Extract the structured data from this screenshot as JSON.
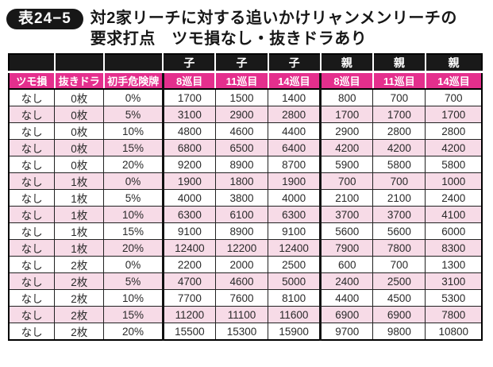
{
  "title": {
    "badge": "表24−5",
    "line1": "対2家リーチに対する追いかけリャンメンリーチの",
    "line2": "要求打点　ツモ損なし・抜きドラあり"
  },
  "colors": {
    "header_black": "#191919",
    "header_magenta": "#e42f8d",
    "zebra_pink": "#f7dbe7",
    "grid_line": "#222222",
    "text": "#2a2a2a"
  },
  "table": {
    "group_headers": [
      "",
      "",
      "",
      "子",
      "子",
      "子",
      "親",
      "親",
      "親"
    ],
    "column_headers": [
      "ツモ損",
      "抜きドラ",
      "初手危険牌",
      "8巡目",
      "11巡目",
      "14巡目",
      "8巡目",
      "11巡目",
      "14巡目"
    ],
    "thick_cols": [
      3,
      6
    ],
    "col_widths_percent": [
      9.7,
      10.4,
      12.5,
      11.1,
      11.1,
      11.1,
      11.1,
      11.1,
      11.9
    ],
    "rows": [
      [
        "なし",
        "0枚",
        "0%",
        "1700",
        "1500",
        "1400",
        "800",
        "700",
        "700"
      ],
      [
        "なし",
        "0枚",
        "5%",
        "3100",
        "2900",
        "2800",
        "1700",
        "1700",
        "1700"
      ],
      [
        "なし",
        "0枚",
        "10%",
        "4800",
        "4600",
        "4400",
        "2900",
        "2800",
        "2800"
      ],
      [
        "なし",
        "0枚",
        "15%",
        "6800",
        "6500",
        "6400",
        "4200",
        "4200",
        "4200"
      ],
      [
        "なし",
        "0枚",
        "20%",
        "9200",
        "8900",
        "8700",
        "5900",
        "5800",
        "5800"
      ],
      [
        "なし",
        "1枚",
        "0%",
        "1900",
        "1800",
        "1900",
        "700",
        "700",
        "1000"
      ],
      [
        "なし",
        "1枚",
        "5%",
        "4000",
        "3800",
        "4000",
        "2100",
        "2100",
        "2400"
      ],
      [
        "なし",
        "1枚",
        "10%",
        "6300",
        "6100",
        "6300",
        "3700",
        "3700",
        "4100"
      ],
      [
        "なし",
        "1枚",
        "15%",
        "9100",
        "8900",
        "9100",
        "5600",
        "5600",
        "6000"
      ],
      [
        "なし",
        "1枚",
        "20%",
        "12400",
        "12200",
        "12400",
        "7900",
        "7800",
        "8300"
      ],
      [
        "なし",
        "2枚",
        "0%",
        "2200",
        "2000",
        "2500",
        "600",
        "700",
        "1300"
      ],
      [
        "なし",
        "2枚",
        "5%",
        "4700",
        "4600",
        "5000",
        "2400",
        "2500",
        "3100"
      ],
      [
        "なし",
        "2枚",
        "10%",
        "7700",
        "7600",
        "8100",
        "4400",
        "4500",
        "5300"
      ],
      [
        "なし",
        "2枚",
        "15%",
        "11200",
        "11100",
        "11600",
        "6900",
        "6900",
        "7800"
      ],
      [
        "なし",
        "2枚",
        "20%",
        "15500",
        "15300",
        "15900",
        "9700",
        "9800",
        "10800"
      ]
    ]
  }
}
